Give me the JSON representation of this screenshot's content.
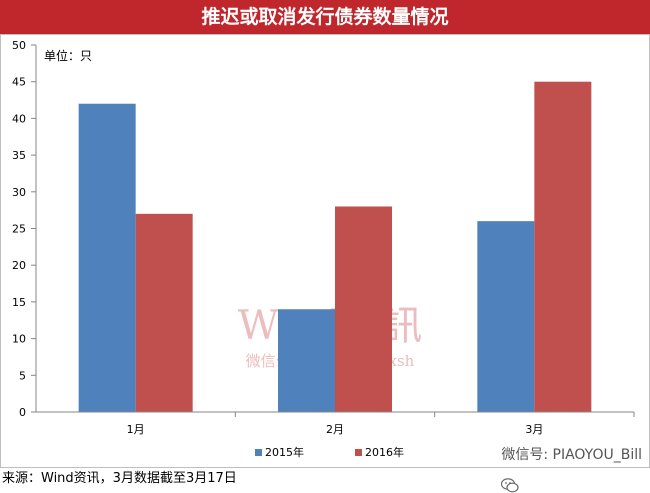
{
  "header": {
    "title": "推迟或取消发行债券数量情况"
  },
  "chart_data": {
    "type": "bar",
    "title": "推迟或取消发行债券数量情况",
    "unit_label": "单位：只",
    "categories": [
      "1月",
      "2月",
      "3月"
    ],
    "series": [
      {
        "name": "2015年",
        "color": "#4f81bd",
        "values": [
          42,
          14,
          26
        ]
      },
      {
        "name": "2016年",
        "color": "#c0504d",
        "values": [
          27,
          28,
          45
        ]
      }
    ],
    "ylim": [
      0,
      50
    ],
    "yticks": [
      0,
      5,
      10,
      15,
      20,
      25,
      30,
      35,
      40,
      45,
      50
    ],
    "grid": false,
    "legend_position": "bottom"
  },
  "watermark": {
    "line1": "Wind資訊",
    "line2": "微信公众号ID:windzxsh"
  },
  "footer": {
    "source_text": "来源：Wind资讯，3月数据截至3月17日",
    "wechat_text": "微信号: PIAOYOU_Bill"
  },
  "colors": {
    "title_bg": "#c0272d",
    "watermark": "#e4a7a8"
  }
}
